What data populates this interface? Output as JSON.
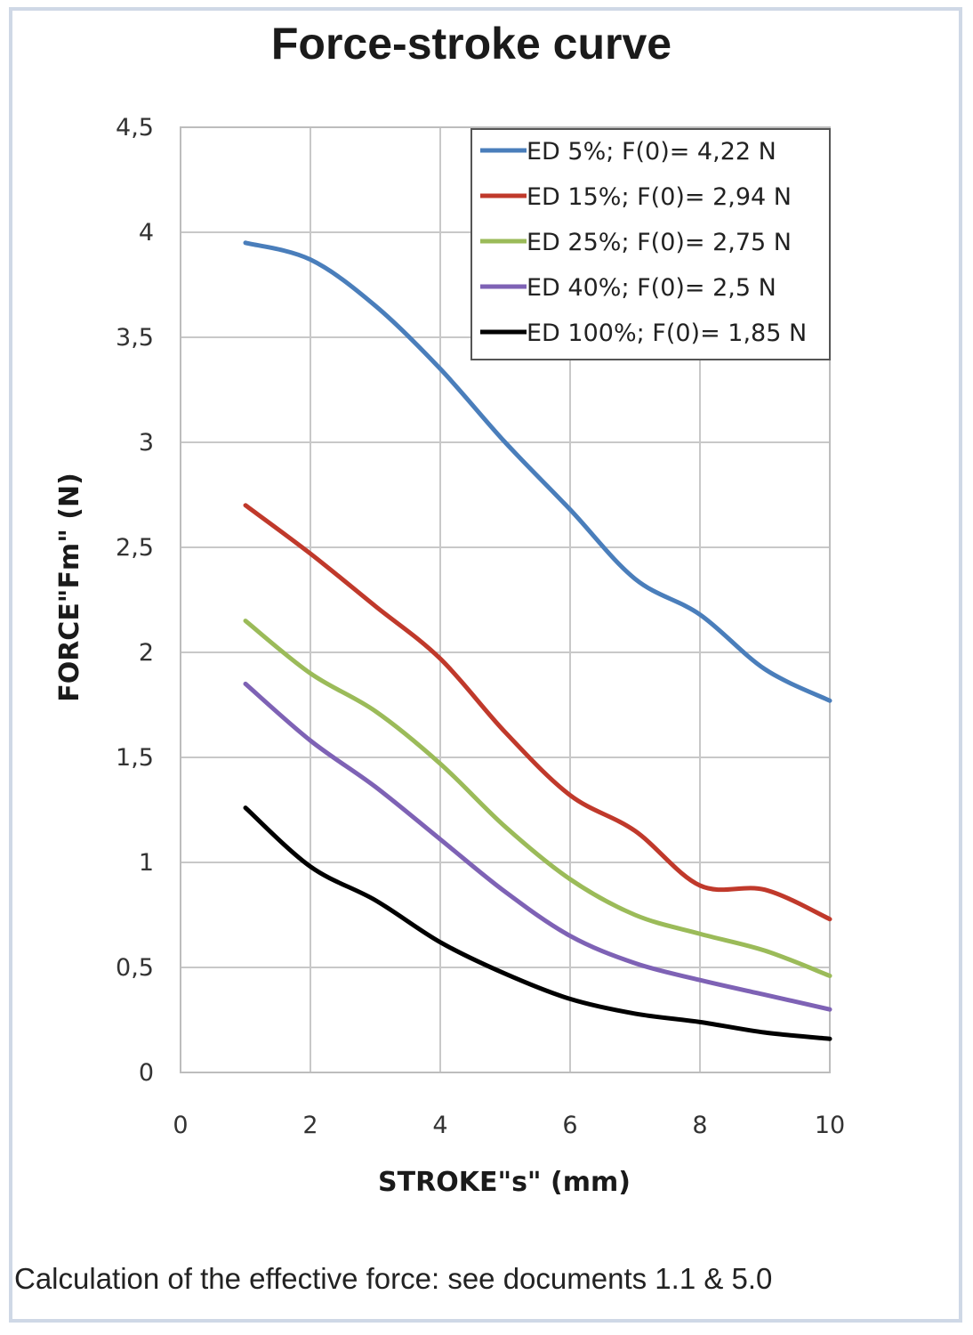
{
  "title": "Force-stroke curve",
  "caption": "Calculation of the effective force: see documents 1.1 & 5.0",
  "chart_data": {
    "type": "line",
    "title": "Force-stroke curve",
    "xlabel": "STROKE\"s\" (mm)",
    "ylabel": "FORCE\"Fm\" (N)",
    "xlim": [
      0,
      10
    ],
    "ylim": [
      0,
      4.5
    ],
    "x_ticks": [
      0,
      2,
      4,
      6,
      8,
      10
    ],
    "y_ticks": [
      0,
      0.5,
      1,
      1.5,
      2,
      2.5,
      3,
      3.5,
      4,
      4.5
    ],
    "x_tick_labels": [
      "0",
      "2",
      "4",
      "6",
      "8",
      "10"
    ],
    "y_tick_labels": [
      "0",
      "0,5",
      "1",
      "1,5",
      "2",
      "2,5",
      "3",
      "3,5",
      "4",
      "4,5"
    ],
    "grid": true,
    "legend_position": "top-right",
    "series": [
      {
        "name": "ED 5%; F(0)= 4,22 N",
        "color": "#4a7ebb",
        "x": [
          1,
          2,
          3,
          4,
          5,
          6,
          7,
          8,
          9,
          10
        ],
        "y": [
          3.95,
          3.87,
          3.65,
          3.35,
          3.0,
          2.68,
          2.35,
          2.18,
          1.92,
          1.77
        ]
      },
      {
        "name": "ED 15%; F(0)= 2,94 N",
        "color": "#c0392b",
        "x": [
          1,
          2,
          3,
          4,
          5,
          6,
          7,
          8,
          9,
          10
        ],
        "y": [
          2.7,
          2.47,
          2.22,
          1.97,
          1.62,
          1.32,
          1.15,
          0.89,
          0.87,
          0.73
        ]
      },
      {
        "name": "ED 25%; F(0)= 2,75 N",
        "color": "#9bbb59",
        "x": [
          1,
          2,
          3,
          4,
          5,
          6,
          7,
          8,
          9,
          10
        ],
        "y": [
          2.15,
          1.9,
          1.72,
          1.47,
          1.17,
          0.92,
          0.75,
          0.66,
          0.58,
          0.46
        ]
      },
      {
        "name": "ED 40%; F(0)= 2,5 N",
        "color": "#7e62b5",
        "x": [
          1,
          2,
          3,
          4,
          5,
          6,
          7,
          8,
          9,
          10
        ],
        "y": [
          1.85,
          1.58,
          1.36,
          1.11,
          0.86,
          0.65,
          0.52,
          0.44,
          0.37,
          0.3
        ]
      },
      {
        "name": "ED 100%; F(0)= 1,85 N",
        "color": "#000000",
        "x": [
          1,
          2,
          3,
          4,
          5,
          6,
          7,
          8,
          9,
          10
        ],
        "y": [
          1.26,
          0.98,
          0.82,
          0.62,
          0.47,
          0.35,
          0.28,
          0.24,
          0.19,
          0.16
        ]
      }
    ]
  }
}
